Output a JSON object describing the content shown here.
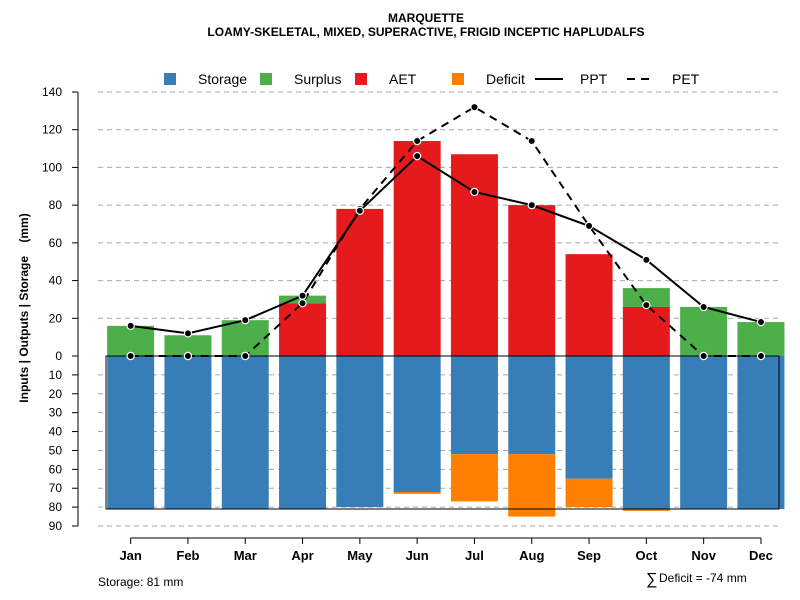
{
  "chart_data": {
    "type": "bar",
    "title": "MARQUETTE",
    "subtitle": "LOAMY-SKELETAL, MIXED, SUPERACTIVE, FRIGID INCEPTIC HAPLUDALFS",
    "ylabel": "Inputs | Outputs | Storage    (mm)",
    "upper_ylim": [
      0,
      140
    ],
    "upper_ticks": [
      "0",
      "20",
      "40",
      "60",
      "80",
      "100",
      "120",
      "140"
    ],
    "lower_ylim": [
      0,
      90
    ],
    "lower_ticks": [
      "10",
      "20",
      "30",
      "40",
      "50",
      "60",
      "70",
      "80",
      "90"
    ],
    "categories": [
      "Jan",
      "Feb",
      "Mar",
      "Apr",
      "May",
      "Jun",
      "Jul",
      "Aug",
      "Sep",
      "Oct",
      "Nov",
      "Dec"
    ],
    "legend": [
      {
        "name": "Storage",
        "kind": "box",
        "color": "#377EB8"
      },
      {
        "name": "Surplus",
        "kind": "box",
        "color": "#4DAF4A"
      },
      {
        "name": "AET",
        "kind": "box",
        "color": "#E41A1C"
      },
      {
        "name": "Deficit",
        "kind": "box",
        "color": "#FF7F00"
      },
      {
        "name": "PPT",
        "kind": "solid",
        "color": "#000000"
      },
      {
        "name": "PET",
        "kind": "dashed",
        "color": "#000000"
      }
    ],
    "series": [
      {
        "name": "AET",
        "values": [
          0,
          0,
          0,
          28,
          78,
          114,
          107,
          80,
          54,
          26,
          0,
          0
        ]
      },
      {
        "name": "Surplus",
        "values": [
          16,
          11,
          19,
          4,
          0,
          0,
          0,
          0,
          0,
          10,
          26,
          18
        ]
      },
      {
        "name": "Storage",
        "values": [
          81,
          81,
          81,
          81,
          80,
          72,
          52,
          52,
          65,
          81,
          81,
          81
        ]
      },
      {
        "name": "Deficit",
        "values": [
          0,
          0,
          0,
          0,
          0,
          1,
          25,
          33,
          15,
          1,
          0,
          0
        ]
      },
      {
        "name": "PPT",
        "values": [
          16,
          12,
          19,
          32,
          77,
          106,
          87,
          80,
          69,
          51,
          26,
          18
        ]
      },
      {
        "name": "PET",
        "values": [
          0,
          0,
          0,
          28,
          78,
          114,
          132,
          114,
          69,
          27,
          0,
          0
        ]
      }
    ],
    "storage_capacity": 81,
    "grid": true
  },
  "footer": {
    "storage_note": "Storage: 81 mm",
    "deficit_symbol": "∑",
    "deficit_note": "Deficit = -74 mm"
  }
}
